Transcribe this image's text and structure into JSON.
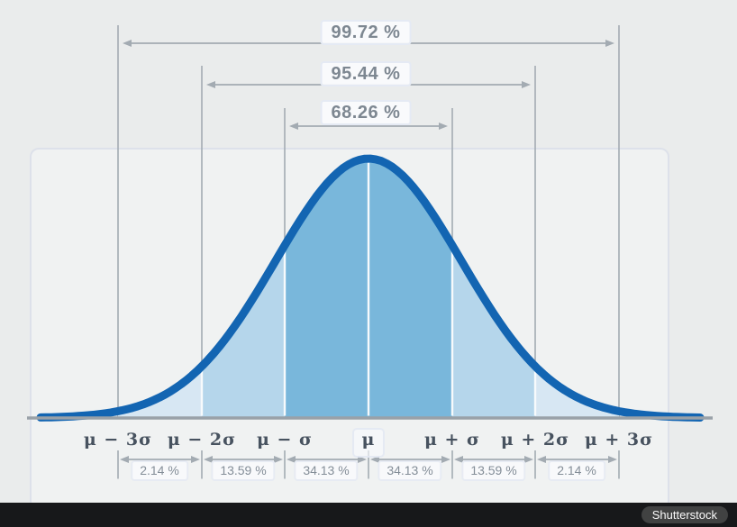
{
  "chart_data": {
    "type": "area",
    "title": "Normal distribution bell curve with empirical rule coverage",
    "x_tick_labels": [
      "μ − 3σ",
      "μ − 2σ",
      "μ − σ",
      "μ",
      "μ + σ",
      "μ + 2σ",
      "μ + 3σ"
    ],
    "coverage_intervals": [
      {
        "from_sigma": -3,
        "to_sigma": 3,
        "label": "99.72 %"
      },
      {
        "from_sigma": -2,
        "to_sigma": 2,
        "label": "95.44 %"
      },
      {
        "from_sigma": -1,
        "to_sigma": 1,
        "label": "68.26 %"
      }
    ],
    "band_percents": [
      {
        "from": "μ−3σ",
        "to": "μ−2σ",
        "label": "2.14 %"
      },
      {
        "from": "μ−2σ",
        "to": "μ−σ",
        "label": "13.59 %"
      },
      {
        "from": "μ−σ",
        "to": "μ",
        "label": "34.13 %"
      },
      {
        "from": "μ",
        "to": "μ+σ",
        "label": "34.13 %"
      },
      {
        "from": "μ+σ",
        "to": "μ+2σ",
        "label": "13.59 %"
      },
      {
        "from": "μ+2σ",
        "to": "μ+3σ",
        "label": "2.14 %"
      }
    ],
    "legend": "none",
    "grid": "off",
    "colors": {
      "background": "#eaecec",
      "curve": "#1365b2",
      "fill_1sigma": "#79b7db",
      "fill_2sigma": "#b5d6eb",
      "fill_3sigma": "#d7e7f3",
      "divider_white": "#f7fafc",
      "guides": "#a3abb2",
      "baseline": "#99a1a8",
      "panel_border": "#dde1ea",
      "text_coverage": "#7d8791",
      "text_sigma": "#47525f",
      "text_band": "#848e98",
      "bottom_bar": "#17181a"
    }
  },
  "watermark": {
    "label": "Shutterstock"
  }
}
